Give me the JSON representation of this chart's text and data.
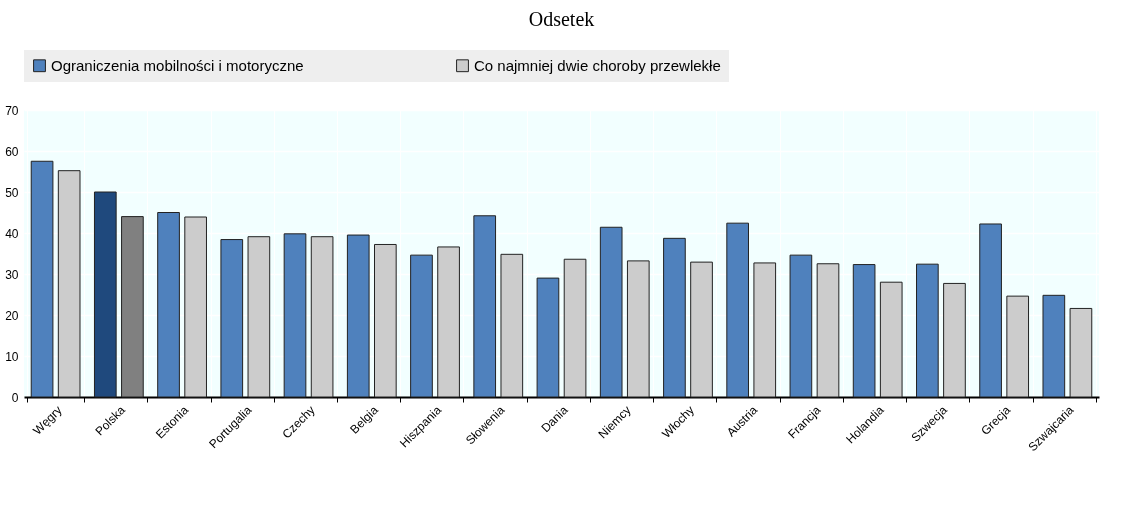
{
  "chart_data": {
    "type": "bar",
    "title": "Odsetek",
    "categories": [
      "Węgry",
      "Polska",
      "Estonia",
      "Portugalia",
      "Czechy",
      "Belgia",
      "Hiszpania",
      "Słowenia",
      "Dania",
      "Niemcy",
      "Włochy",
      "Austria",
      "Francja",
      "Holandia",
      "Szwecja",
      "Grecja",
      "Szwajcaria"
    ],
    "series": [
      {
        "name": "Ograniczenia mobilności i motoryczne",
        "color": "#4f81bd",
        "colors": [
          "#4f81bd",
          "#1f497d",
          "#4f81bd",
          "#4f81bd",
          "#4f81bd",
          "#4f81bd",
          "#4f81bd",
          "#4f81bd",
          "#4f81bd",
          "#4f81bd",
          "#4f81bd",
          "#4f81bd",
          "#4f81bd",
          "#4f81bd",
          "#4f81bd",
          "#4f81bd",
          "#4f81bd"
        ],
        "values": [
          57.5,
          50,
          45,
          38.4,
          39.8,
          39.5,
          34.6,
          44.2,
          29,
          41.4,
          38.7,
          42.4,
          34.6,
          32.3,
          32.4,
          42.2,
          24.8
        ]
      },
      {
        "name": "Co najmniej dwie choroby przewlekłe",
        "color": "#cccccc",
        "colors": [
          "#cccccc",
          "#808080",
          "#cccccc",
          "#cccccc",
          "#cccccc",
          "#cccccc",
          "#cccccc",
          "#cccccc",
          "#cccccc",
          "#cccccc",
          "#cccccc",
          "#cccccc",
          "#cccccc",
          "#cccccc",
          "#cccccc",
          "#cccccc",
          "#cccccc"
        ],
        "values": [
          55.2,
          44,
          43.9,
          39.1,
          39.1,
          37.2,
          36.6,
          34.8,
          33.6,
          33.2,
          32.9,
          32.7,
          32.5,
          28,
          27.7,
          24.6,
          21.6
        ]
      }
    ],
    "ylim": [
      0,
      70
    ],
    "yticks": [
      0,
      10,
      20,
      30,
      40,
      50,
      60,
      70
    ],
    "grid": true,
    "legend": "top"
  }
}
